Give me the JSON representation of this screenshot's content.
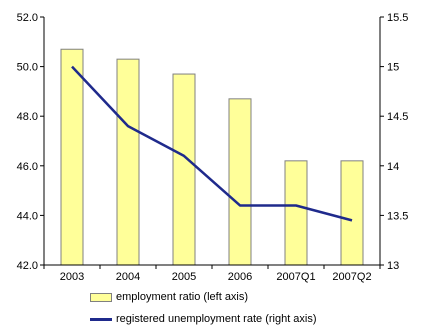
{
  "chart_data": {
    "type": "bar+line",
    "categories": [
      "2003",
      "2004",
      "2005",
      "2006",
      "2007Q1",
      "2007Q2"
    ],
    "series": [
      {
        "name": "employment ratio (left axis)",
        "type": "bar",
        "axis": "left",
        "values": [
          50.7,
          50.3,
          49.7,
          48.7,
          46.2,
          46.2
        ]
      },
      {
        "name": "registered unemployment rate (right axis)",
        "type": "line",
        "axis": "right",
        "values": [
          15.0,
          14.4,
          14.1,
          13.6,
          13.6,
          13.45
        ]
      }
    ],
    "left_axis": {
      "ylim": [
        42.0,
        52.0
      ],
      "ticks": [
        "42.0",
        "44.0",
        "46.0",
        "48.0",
        "50.0",
        "52.0"
      ]
    },
    "right_axis": {
      "ylim": [
        13.0,
        15.5
      ],
      "ticks": [
        "13",
        "13.5",
        "14",
        "14.5",
        "15",
        "15.5"
      ]
    },
    "grid": false,
    "legend_position": "bottom",
    "colors": {
      "bar_fill": "#ffff99",
      "bar_stroke": "#808080",
      "line": "#1f2a8c"
    }
  }
}
